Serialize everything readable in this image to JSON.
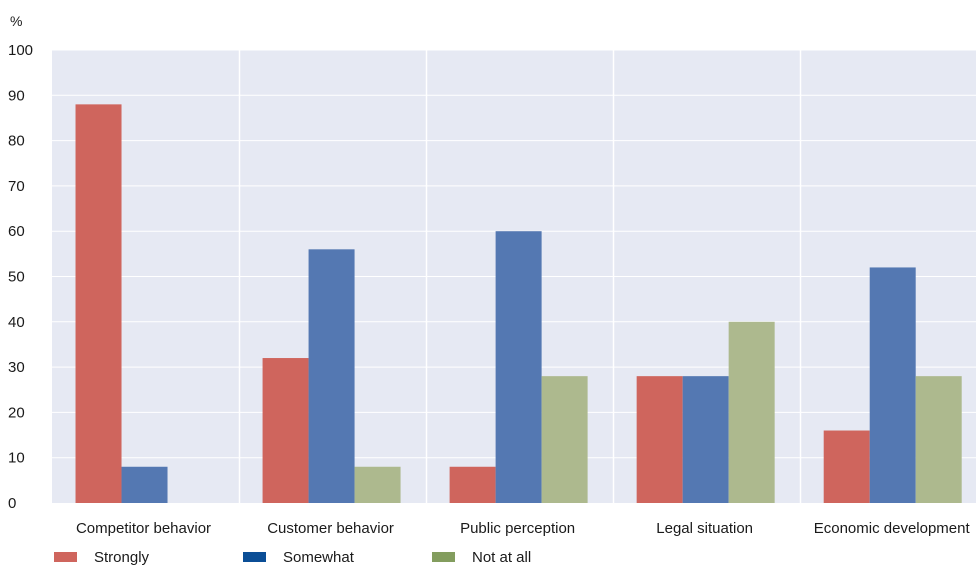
{
  "chart_data": {
    "type": "bar",
    "unit_label": "%",
    "categories": [
      "Competitor behavior",
      "Customer behavior",
      "Public perception",
      "Legal situation",
      "Economic development"
    ],
    "series": [
      {
        "name": "Strongly",
        "color": "#cf655d",
        "legend_color": "#cf655d",
        "values": [
          88,
          32,
          8,
          28,
          16
        ]
      },
      {
        "name": "Somewhat",
        "color": "#5478b2",
        "legend_color": "#0b4e96",
        "values": [
          8,
          56,
          60,
          28,
          52
        ]
      },
      {
        "name": "Not at all",
        "color": "#adb98e",
        "legend_color": "#839d5e",
        "values": [
          0,
          8,
          28,
          40,
          28
        ]
      }
    ],
    "ylim": [
      0,
      100
    ],
    "yticks": [
      0,
      10,
      20,
      30,
      40,
      50,
      60,
      70,
      80,
      90,
      100
    ],
    "plot_background": "#e6e9f3",
    "grid": true,
    "legend_position": "bottom-left"
  }
}
